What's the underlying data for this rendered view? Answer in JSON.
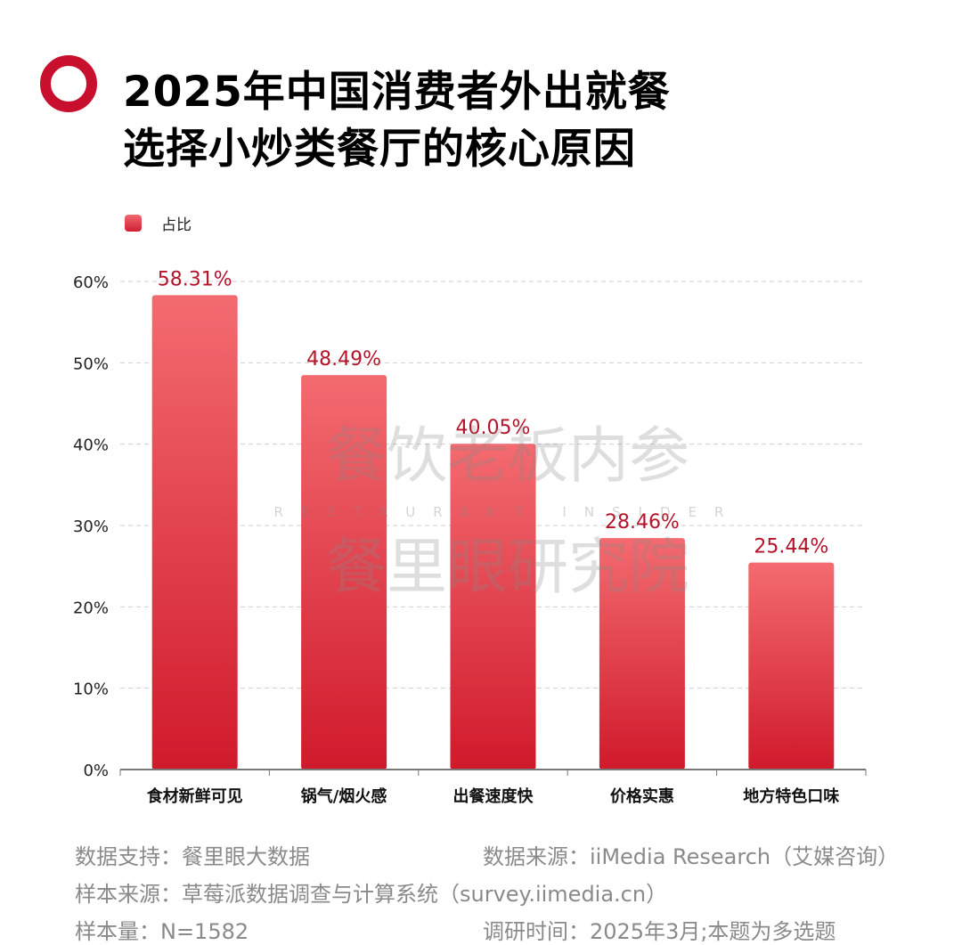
{
  "title_lines": [
    "2025年中国消费者外出就餐",
    "选择小炒类餐厅的核心原因"
  ],
  "legend": "占比",
  "watermark": {
    "line1": "餐饮老板内参",
    "line2": "RESTAURANT INSIDER",
    "line3": "餐里眼研究院"
  },
  "chart_data": {
    "type": "bar",
    "title": "2025年中国消费者外出就餐选择小炒类餐厅的核心原因",
    "categories": [
      "食材新鲜可见",
      "锅气/烟火感",
      "出餐速度快",
      "价格实惠",
      "地方特色口味"
    ],
    "series": [
      {
        "name": "占比",
        "values": [
          58.31,
          48.49,
          40.05,
          28.46,
          25.44
        ]
      }
    ],
    "data_labels": [
      "58.31%",
      "48.49%",
      "40.05%",
      "28.46%",
      "25.44%"
    ],
    "yticks": [
      "0%",
      "10%",
      "20%",
      "30%",
      "40%",
      "50%",
      "60%"
    ],
    "ylim": [
      0,
      60
    ],
    "grid": true,
    "legend_position": "top-left",
    "colors": {
      "bar_top": "#f36b70",
      "bar_bottom": "#d01a2c",
      "label": "#b5132a"
    }
  },
  "footer": {
    "data_support": "数据支持：餐里眼大数据",
    "data_source": "数据来源：iiMedia Research（艾媒咨询）",
    "sample_source": "样本来源：草莓派数据调查与计算系统（survey.iimedia.cn）",
    "sample_size": "样本量：N=1582",
    "survey_time": "调研时间：2025年3月;本题为多选题"
  }
}
